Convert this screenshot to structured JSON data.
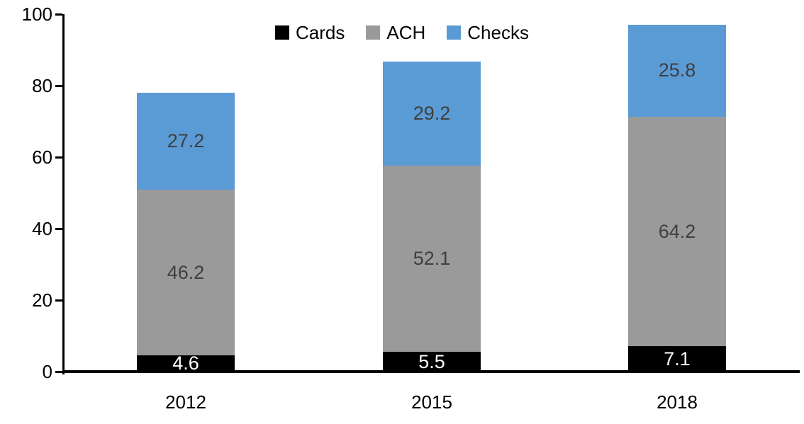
{
  "chart_data": {
    "type": "bar",
    "stacked": true,
    "title": "",
    "xlabel": "",
    "ylabel": "",
    "categories": [
      "2012",
      "2015",
      "2018"
    ],
    "series": [
      {
        "name": "Cards",
        "color": "#000000",
        "label_color": "#FFFFFF",
        "values": [
          4.6,
          5.5,
          7.1
        ]
      },
      {
        "name": "ACH",
        "color": "#9A9A9A",
        "label_color": "#3F3F3F",
        "values": [
          46.2,
          52.1,
          64.2
        ]
      },
      {
        "name": "Checks",
        "color": "#5B9BD5",
        "label_color": "#3F3F3F",
        "values": [
          27.2,
          29.2,
          25.8
        ]
      }
    ],
    "totals": [
      78.0,
      86.8,
      97.1
    ],
    "ylim": [
      0,
      100
    ],
    "yticks": [
      0,
      20,
      40,
      60,
      80,
      100
    ],
    "grid": false,
    "legend": {
      "position": "top",
      "labels": [
        "Cards",
        "ACH",
        "Checks"
      ]
    },
    "axis_color": "#000000"
  }
}
